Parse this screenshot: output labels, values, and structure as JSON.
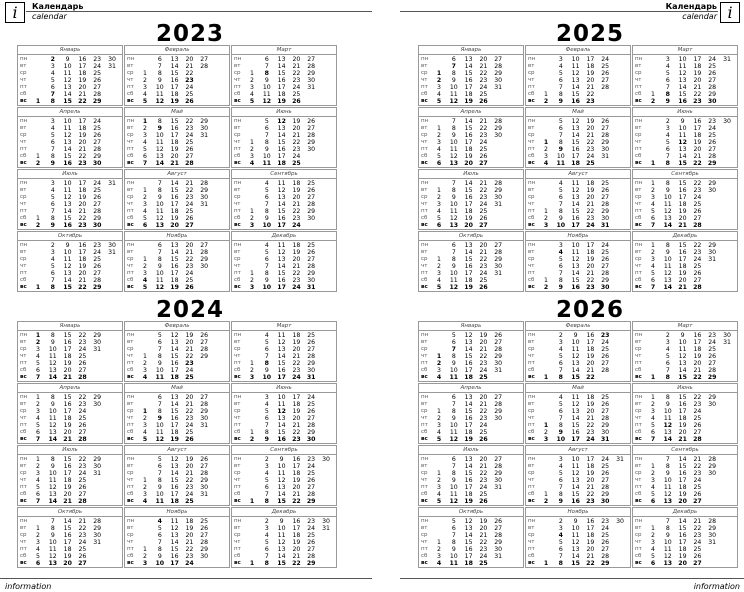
{
  "header": {
    "title": "Календарь",
    "subtitle": "calendar",
    "icon": "info-icon",
    "icon_glyph": "i"
  },
  "footer": {
    "text": "information"
  },
  "weekdays": [
    "пн",
    "вт",
    "ср",
    "чт",
    "пт",
    "сб",
    "вс"
  ],
  "holidays": {
    "1": [
      1,
      2,
      7
    ],
    "2": [
      23
    ],
    "3": [
      8
    ],
    "5": [
      1,
      9
    ],
    "6": [
      12
    ],
    "11": [
      4
    ]
  },
  "years": [
    {
      "year": "2023",
      "months": [
        {
          "name": "Январь",
          "rows": [
            " 2 9 16 23 30",
            " 3 10 17 24 31",
            " 4 11 18 25",
            " 5 12 19 26",
            " 6 13 20 27",
            " 7 14 21 28",
            "1 8 15 22 29"
          ]
        },
        {
          "name": "Февраль",
          "rows": [
            " 6 13 20 27",
            " 7 14 21 28",
            "1 8 15 22",
            "2 9 16 23",
            "3 10 17 24",
            "4 11 18 25",
            "5 12 19 26"
          ]
        },
        {
          "name": "Март",
          "rows": [
            " 6 13 20 27",
            " 7 14 21 28",
            "1 8 15 22 29",
            "2 9 16 23 30",
            "3 10 17 24 31",
            "4 11 18 25",
            "5 12 19 26"
          ]
        },
        {
          "name": "Апрель",
          "rows": [
            " 3 10 17 24",
            " 4 11 18 25",
            " 5 12 19 26",
            " 6 13 20 27",
            " 7 14 21 28",
            "1 8 15 22 29",
            "2 9 16 23 30"
          ]
        },
        {
          "name": "Май",
          "rows": [
            "1 8 15 22 29",
            "2 9 16 23 30",
            "3 10 17 24 31",
            "4 11 18 25",
            "5 12 19 26",
            "6 13 20 27",
            "7 14 21 28"
          ]
        },
        {
          "name": "Июнь",
          "rows": [
            " 5 12 19 26",
            " 6 13 20 27",
            " 7 14 21 28",
            "1 8 15 22 29",
            "2 9 16 23 30",
            "3 10 17 24",
            "4 11 18 25"
          ]
        },
        {
          "name": "Июль",
          "rows": [
            " 3 10 17 24 31",
            " 4 11 18 25",
            " 5 12 19 26",
            " 6 13 20 27",
            " 7 14 21 28",
            "1 8 15 22 29",
            "2 9 16 23 30"
          ]
        },
        {
          "name": "Август",
          "rows": [
            " 7 14 21 28",
            "1 8 15 22 29",
            "2 9 16 23 30",
            "3 10 17 24 31",
            "4 11 18 25",
            "5 12 19 26",
            "6 13 20 27"
          ]
        },
        {
          "name": "Сентябрь",
          "rows": [
            " 4 11 18 25",
            " 5 12 19 26",
            " 6 13 20 27",
            " 7 14 21 28",
            "1 8 15 22 29",
            "2 9 16 23 30",
            "3 10 17 24"
          ]
        },
        {
          "name": "Октябрь",
          "rows": [
            " 2 9 16 23 30",
            " 3 10 17 24 31",
            " 4 11 18 25",
            " 5 12 19 26",
            " 6 13 20 27",
            " 7 14 21 28",
            "1 8 15 22 29"
          ]
        },
        {
          "name": "Ноябрь",
          "rows": [
            " 6 13 20 27",
            " 7 14 21 28",
            "1 8 15 22 29",
            "2 9 16 23 30",
            "3 10 17 24",
            "4 11 18 25",
            "5 12 19 26"
          ]
        },
        {
          "name": "Декабрь",
          "rows": [
            " 4 11 18 25",
            " 5 12 19 26",
            " 6 13 20 27",
            " 7 14 21 28",
            "1 8 15 22 29",
            "2 9 16 23 30",
            "3 10 17 24 31"
          ]
        }
      ]
    },
    {
      "year": "2024",
      "months": [
        {
          "name": "Январь",
          "rows": [
            "1 8 15 22 29",
            "2 9 16 23 30",
            "3 10 17 24 31",
            "4 11 18 25",
            "5 12 19 26",
            "6 13 20 27",
            "7 14 21 28"
          ]
        },
        {
          "name": "Февраль",
          "rows": [
            " 5 12 19 26",
            " 6 13 20 27",
            " 7 14 21 28",
            "1 8 15 22 29",
            "2 9 16 23",
            "3 10 17 24",
            "4 11 18 25"
          ]
        },
        {
          "name": "Март",
          "rows": [
            " 4 11 18 25",
            " 5 12 19 26",
            " 6 13 20 27",
            " 7 14 21 28",
            "1 8 15 22 29",
            "2 9 16 23 30",
            "3 10 17 24 31"
          ]
        },
        {
          "name": "Апрель",
          "rows": [
            "1 8 15 22 29",
            "2 9 16 23 30",
            "3 10 17 24",
            "4 11 18 25",
            "5 12 19 26",
            "6 13 20 27",
            "7 14 21 28"
          ]
        },
        {
          "name": "Май",
          "rows": [
            " 6 13 20 27",
            " 7 14 21 28",
            "1 8 15 22 29",
            "2 9 16 23 30",
            "3 10 17 24 31",
            "4 11 18 25",
            "5 12 19 26"
          ]
        },
        {
          "name": "Июнь",
          "rows": [
            " 3 10 17 24",
            " 4 11 18 25",
            " 5 12 19 26",
            " 6 13 20 27",
            " 7 14 21 28",
            "1 8 15 22 29",
            "2 9 16 23 30"
          ]
        },
        {
          "name": "Июль",
          "rows": [
            "1 8 15 22 29",
            "2 9 16 23 30",
            "3 10 17 24 31",
            "4 11 18 25",
            "5 12 19 26",
            "6 13 20 27",
            "7 14 21 28"
          ]
        },
        {
          "name": "Август",
          "rows": [
            " 5 12 19 26",
            " 6 13 20 27",
            " 7 14 21 28",
            "1 8 15 22 29",
            "2 9 16 23 30",
            "3 10 17 24 31",
            "4 11 18 25"
          ]
        },
        {
          "name": "Сентябрь",
          "rows": [
            " 2 9 16 23 30",
            " 3 10 17 24",
            " 4 11 18 25",
            " 5 12 19 26",
            " 6 13 20 27",
            " 7 14 21 28",
            "1 8 15 22 29"
          ]
        },
        {
          "name": "Октябрь",
          "rows": [
            " 7 14 21 28",
            "1 8 15 22 29",
            "2 9 16 23 30",
            "3 10 17 24 31",
            "4 11 18 25",
            "5 12 19 26",
            "6 13 20 27"
          ]
        },
        {
          "name": "Ноябрь",
          "rows": [
            " 4 11 18 25",
            " 5 12 19 26",
            " 6 13 20 27",
            " 7 14 21 28",
            "1 8 15 22 29",
            "2 9 16 23 30",
            "3 10 17 24"
          ]
        },
        {
          "name": "Декабрь",
          "rows": [
            " 2 9 16 23 30",
            " 3 10 17 24 31",
            " 4 11 18 25",
            " 5 12 19 26",
            " 6 13 20 27",
            " 7 14 21 28",
            "1 8 15 22 29"
          ]
        }
      ]
    },
    {
      "year": "2025",
      "months": [
        {
          "name": "Январь",
          "rows": [
            " 6 13 20 27",
            " 7 14 21 28",
            "1 8 15 22 29",
            "2 9 16 23 30",
            "3 10 17 24 31",
            "4 11 18 25",
            "5 12 19 26"
          ]
        },
        {
          "name": "Февраль",
          "rows": [
            " 3 10 17 24",
            " 4 11 18 25",
            " 5 12 19 26",
            " 6 13 20 27",
            " 7 14 21 28",
            "1 8 15 22",
            "2 9 16 23"
          ]
        },
        {
          "name": "Март",
          "rows": [
            " 3 10 17 24 31",
            " 4 11 18 25",
            " 5 12 19 26",
            " 6 13 20 27",
            " 7 14 21 28",
            "1 8 15 22 29",
            "2 9 16 23 30"
          ]
        },
        {
          "name": "Апрель",
          "rows": [
            " 7 14 21 28",
            "1 8 15 22 29",
            "2 9 16 23 30",
            "3 10 17 24",
            "4 11 18 25",
            "5 12 19 26",
            "6 13 20 27"
          ]
        },
        {
          "name": "Май",
          "rows": [
            " 5 12 19 26",
            " 6 13 20 27",
            " 7 14 21 28",
            "1 8 15 22 29",
            "2 9 16 23 30",
            "3 10 17 24 31",
            "4 11 18 25"
          ]
        },
        {
          "name": "Июнь",
          "rows": [
            " 2 9 16 23 30",
            " 3 10 17 24",
            " 4 11 18 25",
            " 5 12 19 26",
            " 6 13 20 27",
            " 7 14 21 28",
            "1 8 15 22 29"
          ]
        },
        {
          "name": "Июль",
          "rows": [
            " 7 14 21 28",
            "1 8 15 22 29",
            "2 9 16 23 30",
            "3 10 17 24 31",
            "4 11 18 25",
            "5 12 19 26",
            "6 13 20 27"
          ]
        },
        {
          "name": "Август",
          "rows": [
            " 4 11 18 25",
            " 5 12 19 26",
            " 6 13 20 27",
            " 7 14 21 28",
            "1 8 15 22 29",
            "2 9 16 23 30",
            "3 10 17 24 31"
          ]
        },
        {
          "name": "Сентябрь",
          "rows": [
            "1 8 15 22 29",
            "2 9 16 23 30",
            "3 10 17 24",
            "4 11 18 25",
            "5 12 19 26",
            "6 13 20 27",
            "7 14 21 28"
          ]
        },
        {
          "name": "Октябрь",
          "rows": [
            " 6 13 20 27",
            " 7 14 21 28",
            "1 8 15 22 29",
            "2 9 16 23 30",
            "3 10 17 24 31",
            "4 11 18 25",
            "5 12 19 26"
          ]
        },
        {
          "name": "Ноябрь",
          "rows": [
            " 3 10 17 24",
            " 4 11 18 25",
            " 5 12 19 26",
            " 6 13 20 27",
            " 7 14 21 28",
            "1 8 15 22 29",
            "2 9 16 23 30"
          ]
        },
        {
          "name": "Декабрь",
          "rows": [
            "1 8 15 22 29",
            "2 9 16 23 30",
            "3 10 17 24 31",
            "4 11 18 25",
            "5 12 19 26",
            "6 13 20 27",
            "7 14 21 28"
          ]
        }
      ]
    },
    {
      "year": "2026",
      "months": [
        {
          "name": "Январь",
          "rows": [
            " 5 12 19 26",
            " 6 13 20 27",
            " 7 14 21 28",
            "1 8 15 22 29",
            "2 9 16 23 30",
            "3 10 17 24 31",
            "4 11 18 25"
          ]
        },
        {
          "name": "Февраль",
          "rows": [
            " 2 9 16 23",
            " 3 10 17 24",
            " 4 11 18 25",
            " 5 12 19 26",
            " 6 13 20 27",
            " 7 14 21 28",
            "1 8 15 22"
          ]
        },
        {
          "name": "Март",
          "rows": [
            " 2 9 16 23 30",
            " 3 10 17 24 31",
            " 4 11 18 25",
            " 5 12 19 26",
            " 6 13 20 27",
            " 7 14 21 28",
            "1 8 15 22 29"
          ]
        },
        {
          "name": "Апрель",
          "rows": [
            " 6 13 20 27",
            " 7 14 21 28",
            "1 8 15 22 29",
            "2 9 16 23 30",
            "3 10 17 24",
            "4 11 18 25",
            "5 12 19 26"
          ]
        },
        {
          "name": "Май",
          "rows": [
            " 4 11 18 25",
            " 5 12 19 26",
            " 6 13 20 27",
            " 7 14 21 28",
            "1 8 15 22 29",
            "2 9 16 23 30",
            "3 10 17 24 31"
          ]
        },
        {
          "name": "Июнь",
          "rows": [
            "1 8 15 22 29",
            "2 9 16 23 30",
            "3 10 17 24",
            "4 11 18 25",
            "5 12 19 26",
            "6 13 20 27",
            "7 14 21 28"
          ]
        },
        {
          "name": "Июль",
          "rows": [
            " 6 13 20 27",
            " 7 14 21 28",
            "1 8 15 22 29",
            "2 9 16 23 30",
            "3 10 17 24 31",
            "4 11 18 25",
            "5 12 19 26"
          ]
        },
        {
          "name": "Август",
          "rows": [
            " 3 10 17 24 31",
            " 4 11 18 25",
            " 5 12 19 26",
            " 6 13 20 27",
            " 7 14 21 28",
            "1 8 15 22 29",
            "2 9 16 23 30"
          ]
        },
        {
          "name": "Сентябрь",
          "rows": [
            " 7 14 21 28",
            "1 8 15 22 29",
            "2 9 16 23 30",
            "3 10 17 24",
            "4 11 18 25",
            "5 12 19 26",
            "6 13 20 27"
          ]
        },
        {
          "name": "Октябрь",
          "rows": [
            " 5 12 19 26",
            " 6 13 20 27",
            " 7 14 21 28",
            "1 8 15 22 29",
            "2 9 16 23 30",
            "3 10 17 24 31",
            "4 11 18 25"
          ]
        },
        {
          "name": "Ноябрь",
          "rows": [
            " 2 9 16 23 30",
            " 3 10 17 24",
            " 4 11 18 25",
            " 5 12 19 26",
            " 6 13 20 27",
            " 7 14 21 28",
            "1 8 15 22 29"
          ]
        },
        {
          "name": "Декабрь",
          "rows": [
            " 7 14 21 28",
            "1 8 15 22 29",
            "2 9 16 23 30",
            "3 10 17 24 31",
            "4 11 18 25",
            "5 12 19 26",
            "6 13 20 27"
          ]
        }
      ]
    }
  ]
}
